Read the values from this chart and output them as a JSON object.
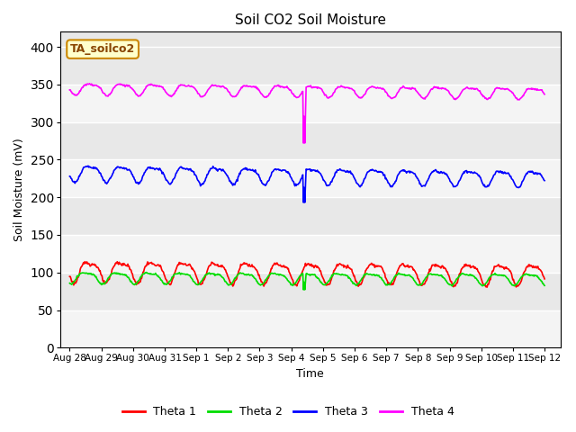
{
  "title": "Soil CO2 Soil Moisture",
  "xlabel": "Time",
  "ylabel": "Soil Moisture (mV)",
  "annotation_text": "TA_soilco2",
  "annotation_box_color": "#ffffcc",
  "annotation_box_edge": "#cc8800",
  "ylim": [
    0,
    420
  ],
  "yticks": [
    0,
    50,
    100,
    150,
    200,
    250,
    300,
    350,
    400
  ],
  "bg_color": "#e8e8e8",
  "series": {
    "theta1": {
      "color": "red",
      "label": "Theta 1",
      "base": 103,
      "amplitude": 13,
      "phase": 0.62
    },
    "theta2": {
      "color": "#00dd00",
      "label": "Theta 2",
      "base": 94,
      "amplitude": 7,
      "phase": 0.72
    },
    "theta3": {
      "color": "blue",
      "label": "Theta 3",
      "base": 233,
      "amplitude": 10,
      "phase": 0.6
    },
    "theta4": {
      "color": "magenta",
      "label": "Theta 4",
      "base": 345,
      "amplitude": 7,
      "phase": 0.58
    }
  },
  "spike_x": 7.42,
  "spike_vals": {
    "theta2": 77,
    "theta3": 193,
    "theta4": 272
  },
  "xtick_labels": [
    "Aug 28",
    "Aug 29",
    "Aug 30",
    "Aug 31",
    "Sep 1",
    "Sep 2",
    "Sep 3",
    "Sep 4",
    "Sep 5",
    "Sep 6",
    "Sep 7",
    "Sep 8",
    "Sep 9",
    "Sep 10",
    "Sep 11",
    "Sep 12"
  ],
  "xtick_positions": [
    0,
    1,
    2,
    3,
    4,
    5,
    6,
    7,
    8,
    9,
    10,
    11,
    12,
    13,
    14,
    15
  ],
  "xlim": [
    -0.3,
    15.5
  ],
  "grid_color": "white",
  "linewidth": 1.2
}
